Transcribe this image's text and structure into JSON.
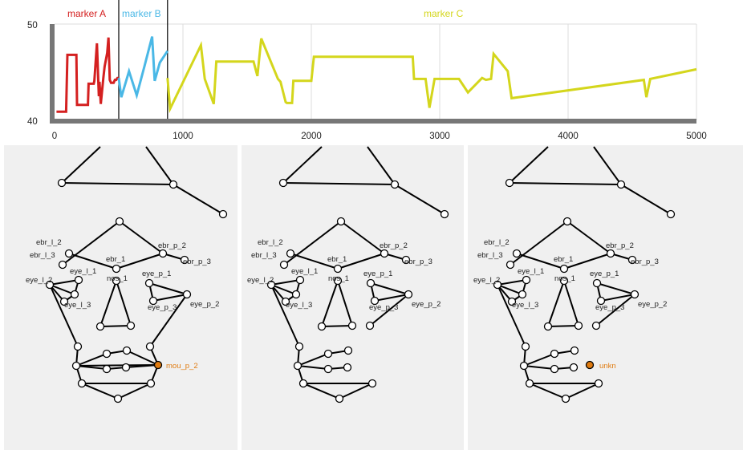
{
  "timeline": {
    "x_ticks": [
      "0",
      "1000",
      "2000",
      "3000",
      "4000",
      "5000"
    ],
    "y_ticks": [
      "40",
      "50"
    ],
    "xlim": [
      0,
      5000
    ],
    "ylim": [
      40,
      50
    ],
    "markers": [
      {
        "name": "marker A",
        "start": 0,
        "end": 500,
        "color": "#d42020"
      },
      {
        "name": "marker B",
        "start": 500,
        "end": 880,
        "color": "#4ab8e6"
      },
      {
        "name": "marker C",
        "start": 880,
        "end": 5000,
        "color": "#d4d61c"
      }
    ]
  },
  "chart_data": {
    "type": "line",
    "xlim": [
      0,
      5000
    ],
    "ylim": [
      40,
      50
    ],
    "series": [
      {
        "color": "#d42020",
        "x": [
          15,
          90,
          100,
          170,
          175,
          260,
          265,
          305,
          310,
          330,
          345,
          350,
          360,
          380,
          390,
          410,
          420,
          430,
          440,
          460,
          470,
          480,
          490,
          500
        ],
        "y": [
          40.9,
          40.9,
          46.8,
          46.8,
          41.6,
          41.6,
          43.8,
          43.8,
          44.1,
          48.0,
          42.5,
          44.0,
          41.7,
          44.4,
          45.6,
          47.0,
          48.6,
          44.2,
          43.9,
          43.9,
          44.2,
          44.2,
          44.4,
          44.4
        ]
      },
      {
        "color": "#4ab8e6",
        "x": [
          500,
          520,
          580,
          640,
          700,
          760,
          780,
          820,
          880
        ],
        "y": [
          44.4,
          42.4,
          45.1,
          42.6,
          45.6,
          48.7,
          44.1,
          46.0,
          47.2
        ]
      },
      {
        "color": "#d4d61c",
        "x": [
          880,
          900,
          1140,
          1170,
          1240,
          1260,
          1550,
          1580,
          1610,
          1740,
          1760,
          1800,
          1810,
          1850,
          1860,
          1990,
          2000,
          2020,
          2790,
          2800,
          2840,
          2890,
          2920,
          2960,
          3150,
          3220,
          3330,
          3360,
          3400,
          3420,
          3530,
          3560,
          4590,
          4610,
          4640,
          5000
        ],
        "y": [
          44.4,
          41.2,
          47.8,
          44.3,
          41.7,
          46.1,
          46.1,
          44.6,
          48.5,
          44.3,
          44.0,
          41.9,
          41.8,
          41.8,
          44.1,
          44.1,
          44.1,
          46.6,
          46.6,
          44.3,
          44.3,
          44.3,
          41.3,
          44.3,
          44.3,
          42.9,
          44.4,
          44.2,
          44.3,
          46.9,
          45.1,
          42.3,
          44.2,
          42.4,
          44.3,
          45.3
        ]
      }
    ]
  },
  "panels": [
    {
      "tag": "",
      "tag_visible": false
    },
    {
      "tag": "",
      "tag_visible": false
    },
    {
      "tag": "unkn",
      "tag_visible": true
    }
  ],
  "face": {
    "labels": {
      "ebr_l_2": "ebr_l_2",
      "ebr_l_3": "ebr_l_3",
      "ebr_1": "ebr_1",
      "ebr_p_2": "ebr_p_2",
      "ebr_p_3": "ebr_p_3",
      "eye_l_2": "eye_l_2",
      "eye_l_1": "eye_l_1",
      "eye_l_3": "eye_l_3",
      "nos_1": "nos_1",
      "eye_p_1": "eye_p_1",
      "eye_p_2": "eye_p_2",
      "eye_p_3": "eye_p_3",
      "mou_p_2": "mou_p_2"
    },
    "highlight_color": "#e07b10",
    "node_color": "#ffffff"
  }
}
